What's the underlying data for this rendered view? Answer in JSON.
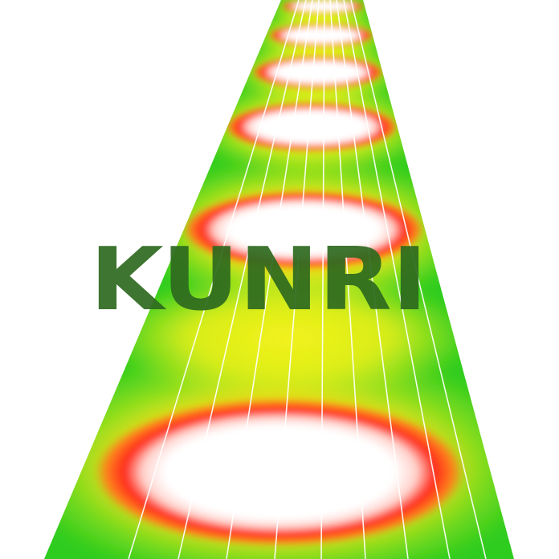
{
  "watermark": {
    "text": "KUNRI",
    "color": "#2e6a1f"
  },
  "heatmap": {
    "description_colors": {
      "cold": "#2ecc1f",
      "mid": "#f2f21a",
      "warm": "#ff2a1a",
      "hot": "#ffffff"
    },
    "spots": [
      {
        "depth": 0.985,
        "intensity": 1.0
      },
      {
        "depth": 0.94,
        "intensity": 1.0
      },
      {
        "depth": 0.87,
        "intensity": 1.0
      },
      {
        "depth": 0.76,
        "intensity": 1.0
      },
      {
        "depth": 0.59,
        "intensity": 1.0
      },
      {
        "depth": 0.14,
        "intensity": 1.0
      }
    ],
    "streak_count": 9
  }
}
